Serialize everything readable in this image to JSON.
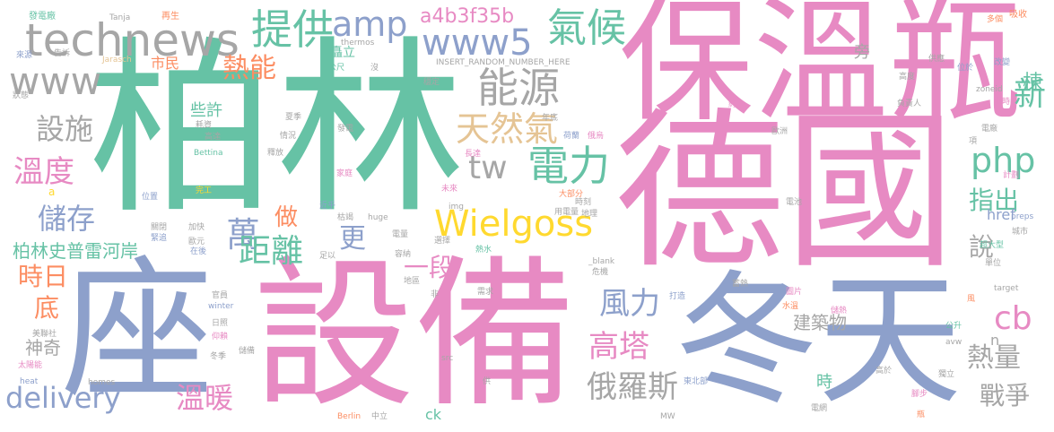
{
  "palette": {
    "green": "#66c2a5",
    "pink": "#e78ac3",
    "blue": "#8da0cb",
    "grey": "#a6a6a6",
    "orange": "#fc8d62",
    "yellow": "#ffd92f",
    "lime": "#a6d854",
    "tan": "#e5c494"
  },
  "words": [
    {
      "text": "德國",
      "color": "pink"
    },
    {
      "text": "柏林",
      "color": "green"
    },
    {
      "text": "保溫瓶",
      "color": "pink"
    },
    {
      "text": "設備",
      "color": "pink"
    },
    {
      "text": "冬天",
      "color": "blue"
    },
    {
      "text": "座",
      "color": "blue"
    },
    {
      "text": "technews",
      "color": "grey"
    },
    {
      "text": "www",
      "color": "grey"
    },
    {
      "text": "提供",
      "color": "green"
    },
    {
      "text": "amp",
      "color": "blue"
    },
    {
      "text": "www5",
      "color": "blue"
    },
    {
      "text": "氣候",
      "color": "green"
    },
    {
      "text": "能源",
      "color": "grey"
    },
    {
      "text": "天然氣",
      "color": "tan"
    },
    {
      "text": "電力",
      "color": "green"
    },
    {
      "text": "tw",
      "color": "grey"
    },
    {
      "text": "php",
      "color": "green"
    },
    {
      "text": "Wielgoss",
      "color": "yellow"
    },
    {
      "text": "新",
      "color": "green"
    },
    {
      "text": "棟",
      "color": "green"
    },
    {
      "text": "熱能",
      "color": "orange"
    },
    {
      "text": "設施",
      "color": "grey"
    },
    {
      "text": "溫度",
      "color": "pink"
    },
    {
      "text": "儲存",
      "color": "blue"
    },
    {
      "text": "時日",
      "color": "orange"
    },
    {
      "text": "底",
      "color": "orange"
    },
    {
      "text": "萬",
      "color": "blue"
    },
    {
      "text": "距離",
      "color": "green"
    },
    {
      "text": "更",
      "color": "blue"
    },
    {
      "text": "做",
      "color": "orange"
    },
    {
      "text": "一段",
      "color": "pink"
    },
    {
      "text": "風力",
      "color": "blue"
    },
    {
      "text": "高塔",
      "color": "pink"
    },
    {
      "text": "俄羅斯",
      "color": "grey"
    },
    {
      "text": "cb",
      "color": "pink"
    },
    {
      "text": "熱量",
      "color": "grey"
    },
    {
      "text": "戰爭",
      "color": "grey"
    },
    {
      "text": "說",
      "color": "grey"
    },
    {
      "text": "指出",
      "color": "green"
    },
    {
      "text": "delivery",
      "color": "blue"
    },
    {
      "text": "溫暖",
      "color": "pink"
    },
    {
      "text": "神奇",
      "color": "grey"
    },
    {
      "text": "柏林史普雷河岸",
      "color": "green"
    },
    {
      "text": "a4b3f35b",
      "color": "pink"
    },
    {
      "text": "建築物",
      "color": "grey"
    },
    {
      "text": "href",
      "color": "blue"
    },
    {
      "text": "時",
      "color": "green"
    },
    {
      "text": "n",
      "color": "grey"
    },
    {
      "text": "ck",
      "color": "green"
    },
    {
      "text": "旁",
      "color": "grey"
    },
    {
      "text": "些許",
      "color": "green"
    },
    {
      "text": "市民",
      "color": "orange"
    },
    {
      "text": "矗立",
      "color": "green"
    },
    {
      "text": "INSERT_RANDOM_NUMBER_HERE",
      "color": "grey"
    },
    {
      "text": "發電廠",
      "color": "green"
    },
    {
      "text": "Tanja",
      "color": "grey"
    },
    {
      "text": "再生",
      "color": "orange"
    },
    {
      "text": "吸收",
      "color": "orange"
    },
    {
      "text": "來源",
      "color": "blue"
    },
    {
      "text": "告訴",
      "color": "grey"
    },
    {
      "text": "Jarasch",
      "color": "tan"
    },
    {
      "text": "thermos",
      "color": "grey"
    },
    {
      "text": "公尺",
      "color": "green"
    },
    {
      "text": "沒",
      "color": "grey"
    },
    {
      "text": "供應",
      "color": "grey"
    },
    {
      "text": "改變",
      "color": "blue"
    },
    {
      "text": "位於",
      "color": "blue"
    },
    {
      "text": "多個",
      "color": "orange"
    },
    {
      "text": "狀態",
      "color": "grey"
    },
    {
      "text": "穩定",
      "color": "grey"
    },
    {
      "text": "高度",
      "color": "grey"
    },
    {
      "text": "負責人",
      "color": "grey"
    },
    {
      "text": "zoneid",
      "color": "grey"
    },
    {
      "text": "小時",
      "color": "pink"
    },
    {
      "text": "約",
      "color": "pink"
    },
    {
      "text": "耗資",
      "color": "grey"
    },
    {
      "text": "夏季",
      "color": "grey"
    },
    {
      "text": "高達",
      "color": "grey"
    },
    {
      "text": "情況",
      "color": "grey"
    },
    {
      "text": "發電",
      "color": "grey"
    },
    {
      "text": "年底",
      "color": "grey"
    },
    {
      "text": "荷蘭",
      "color": "blue"
    },
    {
      "text": "俄烏",
      "color": "pink"
    },
    {
      "text": "歐洲",
      "color": "grey"
    },
    {
      "text": "電廠",
      "color": "grey"
    },
    {
      "text": "項",
      "color": "grey"
    },
    {
      "text": "Bettina",
      "color": "green"
    },
    {
      "text": "釋放",
      "color": "grey"
    },
    {
      "text": "長達",
      "color": "pink"
    },
    {
      "text": "家庭",
      "color": "pink"
    },
    {
      "text": "計劃",
      "color": "pink"
    },
    {
      "text": "位置",
      "color": "blue"
    },
    {
      "text": "完工",
      "color": "yellow"
    },
    {
      "text": "未來",
      "color": "pink"
    },
    {
      "text": "大部分",
      "color": "orange"
    },
    {
      "text": "img",
      "color": "grey"
    },
    {
      "text": "時刻",
      "color": "grey"
    },
    {
      "text": "地理",
      "color": "grey"
    },
    {
      "text": "近乎",
      "color": "blue"
    },
    {
      "text": "用電量",
      "color": "grey"
    },
    {
      "text": "枯竭",
      "color": "grey"
    },
    {
      "text": "huge",
      "color": "grey"
    },
    {
      "text": "電池",
      "color": "grey"
    },
    {
      "text": "preps",
      "color": "blue"
    },
    {
      "text": "城市",
      "color": "grey"
    },
    {
      "text": "關閉",
      "color": "grey"
    },
    {
      "text": "加快",
      "color": "grey"
    },
    {
      "text": "緊追",
      "color": "blue"
    },
    {
      "text": "電量",
      "color": "grey"
    },
    {
      "text": "熱水",
      "color": "green"
    },
    {
      "text": "歐元",
      "color": "grey"
    },
    {
      "text": "選擇",
      "color": "grey"
    },
    {
      "text": "在後",
      "color": "blue"
    },
    {
      "text": "超大型",
      "color": "green"
    },
    {
      "text": "單位",
      "color": "grey"
    },
    {
      "text": "足以",
      "color": "grey"
    },
    {
      "text": "容納",
      "color": "grey"
    },
    {
      "text": "_blank",
      "color": "grey"
    },
    {
      "text": "危機",
      "color": "grey"
    },
    {
      "text": "地區",
      "color": "grey"
    },
    {
      "text": "非",
      "color": "grey"
    },
    {
      "text": "蓄熱",
      "color": "grey"
    },
    {
      "text": "官員",
      "color": "grey"
    },
    {
      "text": "需求",
      "color": "grey"
    },
    {
      "text": "打造",
      "color": "blue"
    },
    {
      "text": "圖片",
      "color": "pink"
    },
    {
      "text": "target",
      "color": "grey"
    },
    {
      "text": "winter",
      "color": "blue"
    },
    {
      "text": "水溫",
      "color": "orange"
    },
    {
      "text": "風",
      "color": "orange"
    },
    {
      "text": "日照",
      "color": "grey"
    },
    {
      "text": "美聯社",
      "color": "grey"
    },
    {
      "text": "仰賴",
      "color": "pink"
    },
    {
      "text": "儲熱",
      "color": "pink"
    },
    {
      "text": "公升",
      "color": "green"
    },
    {
      "text": "avw",
      "color": "grey"
    },
    {
      "text": "太陽能",
      "color": "pink"
    },
    {
      "text": "冬季",
      "color": "grey"
    },
    {
      "text": "儲備",
      "color": "grey"
    },
    {
      "text": "src",
      "color": "grey"
    },
    {
      "text": "高於",
      "color": "grey"
    },
    {
      "text": "獨立",
      "color": "grey"
    },
    {
      "text": "heat",
      "color": "blue"
    },
    {
      "text": "homes",
      "color": "grey"
    },
    {
      "text": "供",
      "color": "grey"
    },
    {
      "text": "東北部",
      "color": "blue"
    },
    {
      "text": "腳步",
      "color": "pink"
    },
    {
      "text": "Berlin",
      "color": "orange"
    },
    {
      "text": "中立",
      "color": "grey"
    },
    {
      "text": "MW",
      "color": "grey"
    },
    {
      "text": "電網",
      "color": "grey"
    },
    {
      "text": "瓶",
      "color": "orange"
    },
    {
      "text": "a",
      "color": "yellow"
    }
  ]
}
